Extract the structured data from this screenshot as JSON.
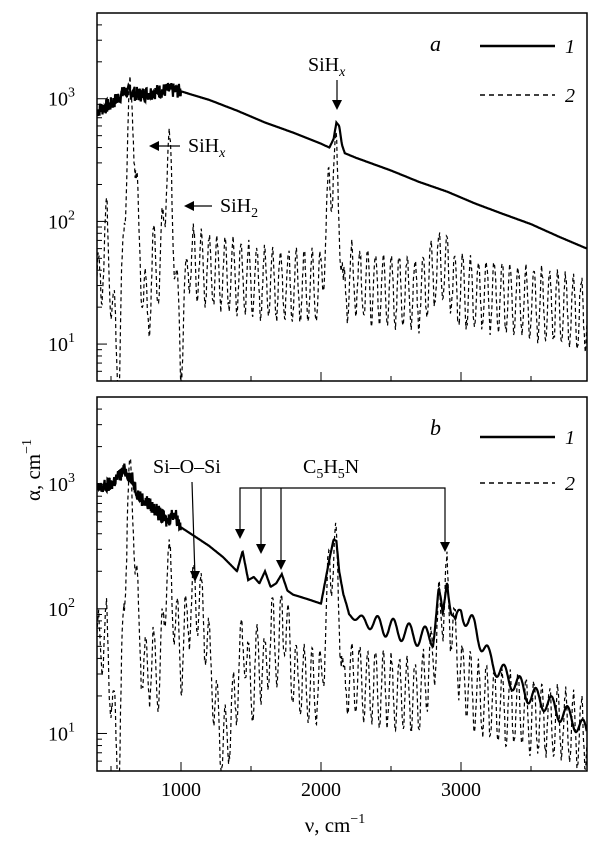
{
  "chart_data": [
    {
      "type": "line",
      "panel_label": "a",
      "y_scale": "log",
      "xlim": [
        400,
        3900
      ],
      "ylim": [
        5,
        5000
      ],
      "x_ticks": [
        1000,
        2000,
        3000
      ],
      "y_ticks": [
        {
          "value": 10,
          "base": "10",
          "exp": "1"
        },
        {
          "value": 100,
          "base": "10",
          "exp": "2"
        },
        {
          "value": 1000,
          "base": "10",
          "exp": "3"
        }
      ],
      "legend": {
        "position": "top-right",
        "entries": [
          {
            "label": "1",
            "style": "solid"
          },
          {
            "label": "2",
            "style": "dashed"
          }
        ]
      },
      "series": [
        {
          "name": "1",
          "style": "solid",
          "x": [
            400,
            500,
            600,
            700,
            800,
            900,
            1000,
            1100,
            1200,
            1400,
            1600,
            1800,
            2000,
            2060,
            2090,
            2110,
            2130,
            2150,
            2170,
            2250,
            2350,
            2500,
            2700,
            2900,
            3100,
            3300,
            3500,
            3700,
            3900
          ],
          "y": [
            800,
            900,
            1150,
            1080,
            1130,
            1180,
            1150,
            1060,
            980,
            800,
            640,
            530,
            430,
            400,
            470,
            640,
            600,
            420,
            360,
            330,
            300,
            260,
            210,
            175,
            140,
            115,
            95,
            75,
            60
          ]
        },
        {
          "name": "2",
          "style": "dashed",
          "x": [
            420,
            470,
            520,
            560,
            620,
            660,
            700,
            760,
            800,
            850,
            900,
            930,
            960,
            1000,
            1050,
            1200,
            1400,
            1600,
            1800,
            2000,
            2060,
            2090,
            2110,
            2130,
            2160,
            2200,
            2300,
            2500,
            2700,
            2850,
            2900,
            2950,
            3100,
            3300,
            3500,
            3700,
            3900
          ],
          "y": [
            30,
            90,
            15,
            6,
            700,
            800,
            60,
            15,
            50,
            35,
            300,
            260,
            40,
            8,
            50,
            40,
            35,
            32,
            30,
            28,
            180,
            300,
            270,
            150,
            20,
            35,
            30,
            28,
            26,
            45,
            40,
            28,
            26,
            24,
            22,
            20,
            18
          ]
        }
      ],
      "annotations": [
        {
          "text": "SiH",
          "sub": "x",
          "x": 2120,
          "y": 620
        },
        {
          "text": "SiH",
          "sub": "x",
          "x": 690,
          "y": 400
        },
        {
          "text": "SiH",
          "sub": "2",
          "x": 930,
          "y": 185
        }
      ]
    },
    {
      "type": "line",
      "panel_label": "b",
      "y_scale": "log",
      "xlim": [
        400,
        3900
      ],
      "ylim": [
        5,
        5000
      ],
      "x_ticks": [
        1000,
        2000,
        3000
      ],
      "y_ticks": [
        {
          "value": 10,
          "base": "10",
          "exp": "1"
        },
        {
          "value": 100,
          "base": "10",
          "exp": "2"
        },
        {
          "value": 1000,
          "base": "10",
          "exp": "3"
        }
      ],
      "legend": {
        "position": "top-right",
        "entries": [
          {
            "label": "1",
            "style": "solid"
          },
          {
            "label": "2",
            "style": "dashed"
          }
        ]
      },
      "series": [
        {
          "name": "1",
          "style": "solid",
          "x": [
            400,
            500,
            600,
            650,
            700,
            800,
            900,
            950,
            1000,
            1100,
            1200,
            1300,
            1400,
            1440,
            1480,
            1520,
            1560,
            1600,
            1640,
            1680,
            1720,
            1760,
            1800,
            1900,
            2000,
            2060,
            2090,
            2110,
            2130,
            2160,
            2200,
            2300,
            2400,
            2500,
            2600,
            2700,
            2800,
            2840,
            2870,
            2900,
            2930,
            2960,
            3000,
            3050,
            3100,
            3200,
            3300,
            3400,
            3500,
            3600,
            3700,
            3800,
            3900
          ],
          "y": [
            900,
            1000,
            1300,
            1100,
            800,
            650,
            500,
            600,
            450,
            380,
            320,
            260,
            200,
            290,
            170,
            180,
            160,
            200,
            150,
            160,
            190,
            140,
            130,
            120,
            110,
            250,
            360,
            350,
            200,
            130,
            90,
            80,
            75,
            70,
            65,
            60,
            60,
            130,
            80,
            190,
            100,
            70,
            100,
            80,
            70,
            40,
            30,
            25,
            20,
            18,
            15,
            13,
            10
          ]
        },
        {
          "name": "2",
          "style": "dashed",
          "x": [
            420,
            470,
            520,
            560,
            620,
            660,
            700,
            760,
            800,
            850,
            900,
            930,
            960,
            1000,
            1050,
            1100,
            1150,
            1200,
            1250,
            1300,
            1350,
            1400,
            1450,
            1500,
            1550,
            1600,
            1650,
            1700,
            1720,
            1760,
            1800,
            1900,
            2000,
            2060,
            2090,
            2110,
            2130,
            2160,
            2200,
            2300,
            2500,
            2700,
            2800,
            2850,
            2900,
            2950,
            3000,
            3100,
            3300,
            3500,
            3700,
            3900
          ],
          "y": [
            50,
            60,
            12,
            6,
            900,
            700,
            50,
            30,
            40,
            25,
            250,
            150,
            80,
            40,
            90,
            130,
            100,
            45,
            15,
            8,
            12,
            25,
            60,
            20,
            40,
            30,
            70,
            40,
            90,
            60,
            30,
            25,
            22,
            200,
            300,
            260,
            120,
            20,
            30,
            25,
            22,
            20,
            40,
            90,
            140,
            60,
            30,
            20,
            16,
            14,
            12,
            10
          ]
        }
      ],
      "annotations": [
        {
          "text": "Si–O–Si",
          "x": 1110,
          "y": 140
        },
        {
          "text": "C",
          "parts": [
            {
              "t": "C"
            },
            {
              "t": "5",
              "sub": true
            },
            {
              "t": "H"
            },
            {
              "t": "5",
              "sub": true
            },
            {
              "t": "N"
            }
          ],
          "arrow_targets": [
            1440,
            1590,
            1740,
            2890
          ]
        }
      ]
    }
  ],
  "axes": {
    "ylabel": "α, cm",
    "ylabel_sup": "−1",
    "xlabel": "ν, cm",
    "xlabel_sup": "−1"
  },
  "legend_labels": {
    "solid": "1",
    "dashed": "2"
  },
  "panel_labels": {
    "a": "a",
    "b": "b"
  }
}
